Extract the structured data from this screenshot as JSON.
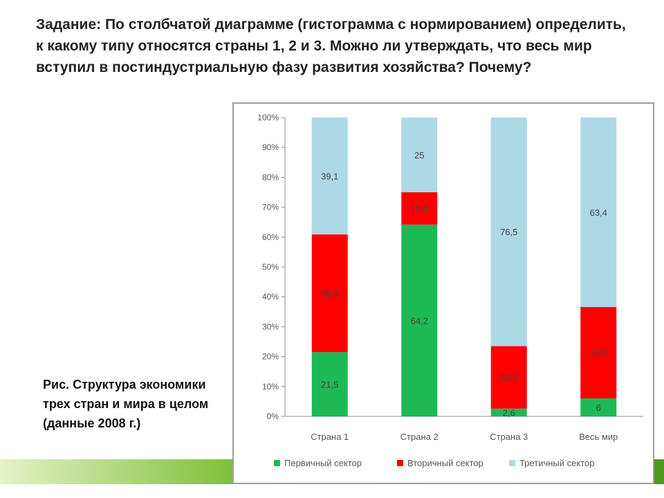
{
  "slide": {
    "task_text": "Задание: По столбчатой диаграмме (гистограмма с нормированием) определить, к какому типу относятся страны 1, 2 и 3. Можно ли утверждать, что весь мир вступил в постиндустриальную фазу развития хозяйства? Почему?",
    "caption_lines": [
      "Рис. Структура экономики",
      "трех стран и мира в целом",
      "(данные 2008 г.)"
    ]
  },
  "chart_data": {
    "type": "bar",
    "stacked": true,
    "normalized": true,
    "categories": [
      "Страна 1",
      "Страна 2",
      "Страна 3",
      "Весь мир"
    ],
    "series": [
      {
        "name": "Первичный сектор",
        "color": "#1db954",
        "values": [
          21.5,
          64.2,
          2.6,
          6
        ],
        "labels": [
          "21,5",
          "64,2",
          "2,6",
          "6"
        ]
      },
      {
        "name": "Вторичный сектор",
        "color": "#ff0000",
        "values": [
          39.4,
          10.8,
          20.9,
          30.6
        ],
        "labels": [
          "39,4",
          "10,8",
          "20,9",
          "30,6"
        ]
      },
      {
        "name": "Третичный сектор",
        "color": "#add8e6",
        "values": [
          39.1,
          25,
          76.5,
          63.4
        ],
        "labels": [
          "39,1",
          "25",
          "76,5",
          "63,4"
        ]
      }
    ],
    "y_ticks": [
      "0%",
      "10%",
      "20%",
      "30%",
      "40%",
      "50%",
      "60%",
      "70%",
      "80%",
      "90%",
      "100%"
    ],
    "ylim": [
      0,
      100
    ],
    "grid": false,
    "legend_position": "bottom"
  }
}
